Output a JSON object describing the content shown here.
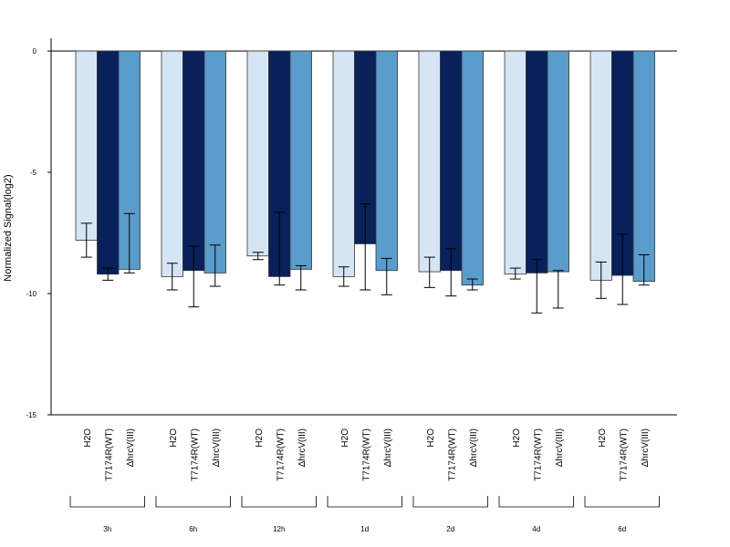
{
  "chart_data": {
    "type": "bar",
    "ylabel": "Normalized Signal(log2)",
    "ylim": [
      -15,
      0
    ],
    "yticks": [
      0,
      -5,
      -10,
      -15
    ],
    "grid": false,
    "legend": "none",
    "groups": [
      "3h",
      "6h",
      "12h",
      "1d",
      "2d",
      "4d",
      "6d"
    ],
    "series": [
      {
        "name": "H2O",
        "color": "#d6e5f4",
        "values": [
          -7.8,
          -9.3,
          -8.45,
          -9.3,
          -9.1,
          -9.2,
          -9.45
        ],
        "err_low": [
          -8.5,
          -9.85,
          -8.6,
          -9.7,
          -9.75,
          -9.4,
          -10.2
        ],
        "err_high": [
          -7.1,
          -8.75,
          -8.3,
          -8.9,
          -8.5,
          -8.95,
          -8.7
        ]
      },
      {
        "name": "T7174R(WT)",
        "color": "#08215a",
        "values": [
          -9.2,
          -9.05,
          -9.3,
          -7.95,
          -9.05,
          -9.15,
          -9.25
        ],
        "err_low": [
          -9.45,
          -10.55,
          -9.65,
          -9.85,
          -10.1,
          -10.8,
          -10.45
        ],
        "err_high": [
          -8.95,
          -8.05,
          -6.65,
          -6.3,
          -8.15,
          -8.6,
          -7.55
        ]
      },
      {
        "name": "ΔhrcV(III)",
        "color": "#5a9ccc",
        "values": [
          -9.0,
          -9.15,
          -9.0,
          -9.05,
          -9.65,
          -9.1,
          -9.5
        ],
        "err_low": [
          -9.15,
          -9.7,
          -9.85,
          -10.05,
          -9.85,
          -10.6,
          -9.65
        ],
        "err_high": [
          -6.7,
          -8.0,
          -8.85,
          -8.55,
          -9.4,
          -9.05,
          -8.4
        ]
      }
    ]
  }
}
